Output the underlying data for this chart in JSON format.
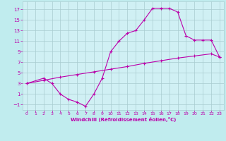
{
  "xlabel": "Windchill (Refroidissement éolien,°C)",
  "background_color": "#c0ecee",
  "plot_bg_color": "#d0f0f4",
  "line_color": "#bb00aa",
  "grid_color": "#a8ccd0",
  "xlim": [
    -0.5,
    23.5
  ],
  "ylim": [
    -2.0,
    18.5
  ],
  "xticks": [
    0,
    1,
    2,
    3,
    4,
    5,
    6,
    7,
    8,
    9,
    10,
    11,
    12,
    13,
    14,
    15,
    16,
    17,
    18,
    19,
    20,
    21,
    22,
    23
  ],
  "yticks": [
    -1,
    1,
    3,
    5,
    7,
    9,
    11,
    13,
    15,
    17
  ],
  "curve1_x": [
    0,
    2,
    3,
    4,
    5,
    6,
    7,
    8,
    9,
    10,
    11,
    12,
    13,
    14,
    15,
    16,
    17,
    18,
    19,
    20,
    21,
    22,
    23
  ],
  "curve1_y": [
    3,
    4,
    3,
    1,
    0,
    -0.5,
    -1.3,
    1.0,
    4,
    9,
    11,
    12.5,
    13,
    15,
    17.2,
    17.2,
    17.2,
    16.5,
    12,
    11.2,
    11.2,
    11.2,
    8
  ],
  "curve2_x": [
    0,
    2,
    4,
    6,
    8,
    10,
    12,
    14,
    16,
    18,
    20,
    22,
    23
  ],
  "curve2_y": [
    3,
    3.6,
    4.2,
    4.7,
    5.2,
    5.7,
    6.2,
    6.8,
    7.3,
    7.8,
    8.2,
    8.6,
    8.0
  ],
  "figsize": [
    3.2,
    2.0
  ],
  "dpi": 100
}
